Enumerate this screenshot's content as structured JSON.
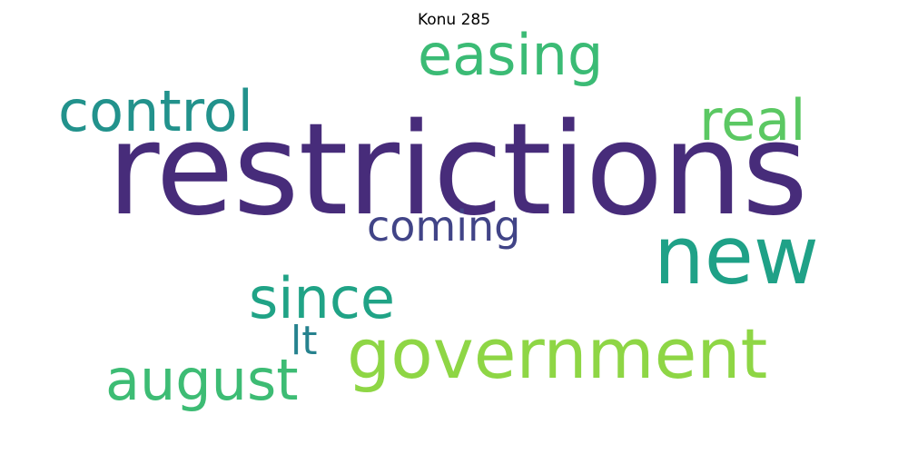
{
  "figure": {
    "title": "Konu 285",
    "words": [
      {
        "id": "restrictions",
        "text": "restrictions",
        "color": "#472C7A"
      },
      {
        "id": "new",
        "text": "new",
        "color": "#1FA187"
      },
      {
        "id": "government",
        "text": "government",
        "color": "#8ED645"
      },
      {
        "id": "easing",
        "text": "easing",
        "color": "#3BBB75"
      },
      {
        "id": "control",
        "text": "control",
        "color": "#22928C"
      },
      {
        "id": "real",
        "text": "real",
        "color": "#5BC863"
      },
      {
        "id": "august",
        "text": "august",
        "color": "#3DBC74"
      },
      {
        "id": "since",
        "text": "since",
        "color": "#20A386"
      },
      {
        "id": "coming",
        "text": "coming",
        "color": "#414487"
      },
      {
        "id": "lt",
        "text": "lt",
        "color": "#26828E"
      }
    ]
  }
}
